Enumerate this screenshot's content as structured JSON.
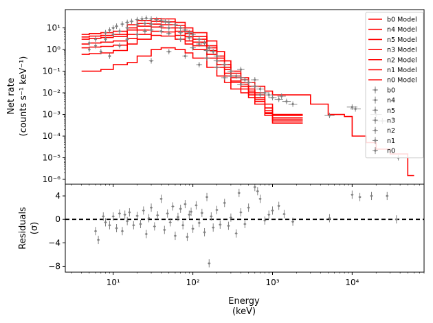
{
  "chart_data": [
    {
      "type": "line",
      "panel": "spectrum",
      "ylabel_line1": "Net rate",
      "ylabel_line2": "(counts s⁻¹ keV⁻¹)",
      "xscale": "log",
      "yscale": "log",
      "xlim": [
        2.5,
        80000
      ],
      "ylim": [
        6e-07,
        70
      ],
      "legend": "top-right",
      "xticks": [
        10,
        100,
        1000,
        10000
      ],
      "xtick_labels": [
        "10¹",
        "10²",
        "10³",
        "10⁴"
      ],
      "yticks": [
        1e-06,
        1e-05,
        0.0001,
        0.001,
        0.01,
        0.1,
        1,
        10
      ],
      "ytick_labels": [
        "10⁻⁶",
        "10⁻⁵",
        "10⁻⁴",
        "10⁻³",
        "10⁻²",
        "10⁻¹",
        "10⁰",
        "10¹"
      ],
      "model_color": "#ff0000",
      "data_color": "#808080",
      "legend_entries": [
        "b0 Model",
        "n4 Model",
        "n5 Model",
        "n3 Model",
        "n2 Model",
        "n1 Model",
        "n0 Model",
        "b0",
        "n4",
        "n5",
        "n3",
        "n2",
        "n1",
        "n0"
      ],
      "model_series": [
        {
          "name": "b0 Model",
          "x": [
            4,
            5,
            7,
            10,
            15,
            20,
            30,
            40,
            60,
            80,
            100,
            150,
            200,
            250,
            300,
            400,
            500,
            600,
            800,
            1000,
            1500,
            2000,
            3000,
            5000,
            8000,
            10000,
            15000,
            20000,
            30000,
            50000
          ],
          "y": [
            5.0,
            5.5,
            6.0,
            7.0,
            14,
            22,
            27,
            26,
            18,
            10,
            6,
            2.5,
            0.8,
            0.3,
            0.1,
            0.05,
            0.03,
            0.02,
            0.012,
            0.008,
            0.008,
            0.008,
            0.003,
            0.001,
            0.0008,
            0.0001,
            5e-05,
            2.5e-05,
            1.5e-05,
            1.5e-06
          ]
        },
        {
          "name": "n4 Model",
          "x": [
            4,
            5,
            7,
            10,
            15,
            20,
            30,
            40,
            60,
            80,
            100,
            150,
            200,
            250,
            300,
            400,
            500,
            600,
            800,
            1000,
            1500,
            2000
          ],
          "y": [
            3.8,
            4.2,
            4.5,
            5.0,
            10,
            16,
            20,
            19,
            13,
            7,
            4,
            1.5,
            0.5,
            0.2,
            0.08,
            0.04,
            0.02,
            0.01,
            0.003,
            0.001,
            0.001,
            0.001
          ]
        },
        {
          "name": "n5 Model",
          "x": [
            4,
            5,
            7,
            10,
            15,
            20,
            30,
            40,
            60,
            80,
            100,
            150,
            200,
            250,
            300,
            400,
            500,
            600,
            800,
            1000,
            1500,
            2000
          ],
          "y": [
            3.0,
            3.3,
            3.6,
            4.0,
            8,
            12,
            15,
            14,
            10,
            5.5,
            3,
            1.2,
            0.4,
            0.15,
            0.06,
            0.03,
            0.015,
            0.008,
            0.002,
            0.0009,
            0.0009,
            0.0009
          ]
        },
        {
          "name": "n3 Model",
          "x": [
            4,
            5,
            7,
            10,
            15,
            20,
            30,
            40,
            60,
            80,
            100,
            150,
            200,
            250,
            300,
            400,
            500,
            600,
            800,
            1000,
            1500,
            2000
          ],
          "y": [
            1.8,
            2.0,
            2.2,
            2.5,
            5,
            8,
            11,
            10,
            7,
            4,
            2.2,
            0.9,
            0.3,
            0.12,
            0.05,
            0.025,
            0.012,
            0.006,
            0.0015,
            0.0007,
            0.0007,
            0.0007
          ]
        },
        {
          "name": "n2 Model",
          "x": [
            4,
            5,
            7,
            10,
            15,
            20,
            30,
            40,
            60,
            80,
            100,
            150,
            200,
            250,
            300,
            400,
            500,
            600,
            800,
            1000,
            1500,
            2000
          ],
          "y": [
            1.2,
            1.3,
            1.4,
            1.6,
            3.2,
            5,
            7,
            6.5,
            4.5,
            2.5,
            1.5,
            0.6,
            0.2,
            0.08,
            0.035,
            0.02,
            0.01,
            0.005,
            0.0012,
            0.0006,
            0.0006,
            0.0006
          ]
        },
        {
          "name": "n1 Model",
          "x": [
            4,
            5,
            7,
            10,
            15,
            20,
            30,
            40,
            60,
            80,
            100,
            150,
            200,
            250,
            300,
            400,
            500,
            600,
            800,
            1000,
            1500,
            2000
          ],
          "y": [
            0.6,
            0.65,
            0.7,
            0.9,
            1.8,
            3,
            4.5,
            4.2,
            3,
            1.8,
            1.0,
            0.4,
            0.15,
            0.06,
            0.03,
            0.015,
            0.008,
            0.004,
            0.0011,
            0.0005,
            0.0005,
            0.0005
          ]
        },
        {
          "name": "n0 Model",
          "x": [
            4,
            5,
            7,
            10,
            15,
            20,
            30,
            40,
            60,
            80,
            100,
            150,
            200,
            250,
            300,
            400,
            500,
            600,
            800,
            1000,
            1500,
            2000
          ],
          "y": [
            0.1,
            0.1,
            0.12,
            0.2,
            0.25,
            0.5,
            1.0,
            1.2,
            1.0,
            0.7,
            0.4,
            0.15,
            0.06,
            0.03,
            0.015,
            0.01,
            0.006,
            0.003,
            0.0009,
            0.0004,
            0.0004,
            0.0004
          ]
        }
      ],
      "data_points": [
        [
          5,
          2.0
        ],
        [
          6,
          3.0
        ],
        [
          7,
          0.8
        ],
        [
          8,
          6
        ],
        [
          9,
          8
        ],
        [
          10,
          10
        ],
        [
          11,
          12
        ],
        [
          13,
          15
        ],
        [
          15,
          18
        ],
        [
          17,
          20
        ],
        [
          20,
          24
        ],
        [
          23,
          26
        ],
        [
          26,
          28
        ],
        [
          30,
          26
        ],
        [
          35,
          24
        ],
        [
          40,
          22
        ],
        [
          45,
          20
        ],
        [
          50,
          18
        ],
        [
          60,
          14
        ],
        [
          70,
          10
        ],
        [
          80,
          8
        ],
        [
          90,
          6
        ],
        [
          100,
          5
        ],
        [
          120,
          3
        ],
        [
          140,
          2
        ],
        [
          160,
          1.2
        ],
        [
          180,
          0.8
        ],
        [
          200,
          0.5
        ],
        [
          250,
          0.2
        ],
        [
          300,
          0.1
        ],
        [
          350,
          0.06
        ],
        [
          400,
          0.05
        ],
        [
          450,
          0.04
        ],
        [
          500,
          0.03
        ],
        [
          600,
          0.02
        ],
        [
          700,
          0.015
        ],
        [
          800,
          0.01
        ],
        [
          900,
          0.008
        ],
        [
          1000,
          0.006
        ],
        [
          1200,
          0.005
        ],
        [
          1500,
          0.004
        ],
        [
          1800,
          0.003
        ],
        [
          5,
          1.0
        ],
        [
          6,
          1.5
        ],
        [
          8,
          3
        ],
        [
          10,
          5
        ],
        [
          12,
          7
        ],
        [
          15,
          10
        ],
        [
          20,
          14
        ],
        [
          25,
          16
        ],
        [
          30,
          15
        ],
        [
          40,
          12
        ],
        [
          50,
          10
        ],
        [
          70,
          6
        ],
        [
          90,
          3.5
        ],
        [
          120,
          1.8
        ],
        [
          150,
          0.9
        ],
        [
          200,
          0.3
        ],
        [
          300,
          0.06
        ],
        [
          400,
          0.025
        ],
        [
          9,
          0.5
        ],
        [
          12,
          1.5
        ],
        [
          15,
          3
        ],
        [
          20,
          5
        ],
        [
          25,
          7
        ],
        [
          30,
          8
        ],
        [
          40,
          7
        ],
        [
          50,
          5.5
        ],
        [
          70,
          3
        ],
        [
          100,
          1.2
        ],
        [
          150,
          0.4
        ],
        [
          200,
          0.15
        ],
        [
          30,
          0.3
        ],
        [
          50,
          0.8
        ],
        [
          80,
          0.5
        ],
        [
          120,
          0.2
        ],
        [
          250,
          0.05
        ],
        [
          400,
          0.12
        ],
        [
          600,
          0.04
        ],
        [
          700,
          0.008
        ],
        [
          1300,
          0.007
        ],
        [
          5200,
          0.0009
        ],
        [
          10000,
          0.0022
        ],
        [
          11000,
          0.0018
        ],
        [
          20000,
          0.001
        ],
        [
          24000,
          0.0005
        ],
        [
          38000,
          1e-05
        ]
      ]
    },
    {
      "type": "scatter",
      "panel": "residuals",
      "xlabel_line1": "Energy",
      "xlabel_line2": "(keV)",
      "ylabel_line1": "Residuals",
      "ylabel_line2": "(σ)",
      "xscale": "log",
      "xlim": [
        2.5,
        80000
      ],
      "ylim": [
        -9,
        6
      ],
      "xticks": [
        10,
        100,
        1000,
        10000
      ],
      "xtick_labels": [
        "10¹",
        "10²",
        "10³",
        "10⁴"
      ],
      "yticks": [
        -8,
        -4,
        0,
        4
      ],
      "ytick_labels": [
        "−8",
        "−4",
        "0",
        "4"
      ],
      "zero_line_color": "#000000",
      "data_color": "#808080",
      "points": [
        [
          6,
          -2
        ],
        [
          6.5,
          -3.5
        ],
        [
          7.5,
          0.5
        ],
        [
          8,
          -0.5
        ],
        [
          9,
          -1
        ],
        [
          10,
          0.5
        ],
        [
          11,
          -1.5
        ],
        [
          12,
          1
        ],
        [
          13,
          -2
        ],
        [
          14,
          0.8
        ],
        [
          15,
          -0.3
        ],
        [
          16,
          1.2
        ],
        [
          18,
          -1
        ],
        [
          20,
          0.6
        ],
        [
          22,
          -0.8
        ],
        [
          24,
          1.5
        ],
        [
          26,
          -2.5
        ],
        [
          28,
          0.2
        ],
        [
          30,
          2
        ],
        [
          33,
          -1.2
        ],
        [
          36,
          0.7
        ],
        [
          40,
          3.5
        ],
        [
          44,
          -1.8
        ],
        [
          48,
          1
        ],
        [
          52,
          -0.5
        ],
        [
          56,
          2.2
        ],
        [
          60,
          -2.8
        ],
        [
          65,
          0.4
        ],
        [
          70,
          1.8
        ],
        [
          75,
          -1
        ],
        [
          80,
          2.6
        ],
        [
          85,
          -3
        ],
        [
          90,
          0.8
        ],
        [
          95,
          1.3
        ],
        [
          100,
          -1.6
        ],
        [
          110,
          2.4
        ],
        [
          120,
          -0.6
        ],
        [
          130,
          1.1
        ],
        [
          140,
          -2.2
        ],
        [
          150,
          3.8
        ],
        [
          160,
          -7.5
        ],
        [
          170,
          0.5
        ],
        [
          180,
          -1.4
        ],
        [
          200,
          1.6
        ],
        [
          220,
          -0.9
        ],
        [
          250,
          2.8
        ],
        [
          280,
          -1.1
        ],
        [
          300,
          0.3
        ],
        [
          350,
          -2.4
        ],
        [
          380,
          4.5
        ],
        [
          400,
          1.2
        ],
        [
          450,
          -0.8
        ],
        [
          500,
          2
        ],
        [
          600,
          5.5
        ],
        [
          650,
          4.8
        ],
        [
          700,
          3.5
        ],
        [
          800,
          -0.2
        ],
        [
          900,
          0.8
        ],
        [
          1000,
          1.5
        ],
        [
          1200,
          2.3
        ],
        [
          1400,
          0.9
        ],
        [
          1800,
          -0.4
        ],
        [
          5200,
          0.2
        ],
        [
          10000,
          4.2
        ],
        [
          12500,
          3.8
        ],
        [
          17500,
          4
        ],
        [
          27500,
          4
        ],
        [
          36000,
          0
        ]
      ]
    }
  ]
}
